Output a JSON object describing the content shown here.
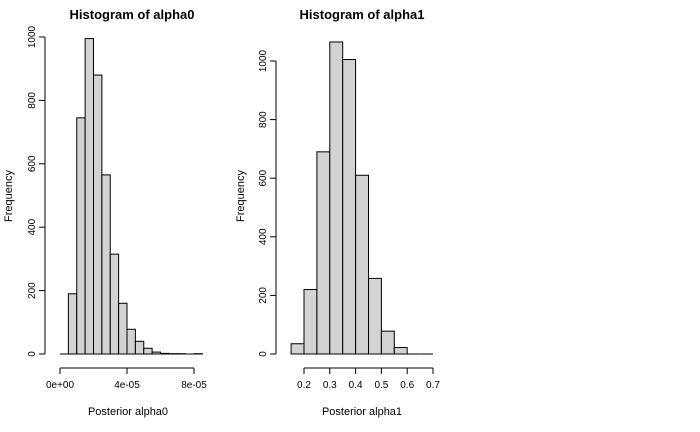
{
  "chart_data": [
    {
      "type": "bar",
      "title": "Histogram of alpha0",
      "xlabel": "Posterior alpha0",
      "ylabel": "Frequency",
      "bin_edges": [
        0.0,
        5e-06,
        1e-05,
        1.5e-05,
        2e-05,
        2.5e-05,
        3e-05,
        3.5e-05,
        4e-05,
        4.5e-05,
        5e-05,
        5.5e-05,
        6e-05,
        6.5e-05,
        7e-05,
        7.5e-05,
        8e-05,
        8.5e-05
      ],
      "values": [
        0,
        190,
        745,
        995,
        880,
        565,
        315,
        160,
        78,
        40,
        18,
        6,
        2,
        1,
        1,
        0,
        1
      ],
      "xlim": [
        0,
        8.5e-05
      ],
      "ylim": [
        0,
        1000
      ],
      "x_ticks": [
        0.0,
        4e-05,
        8e-05
      ],
      "x_tick_labels": [
        "0e+00",
        "4e-05",
        "8e-05"
      ],
      "y_ticks": [
        0,
        200,
        400,
        600,
        800,
        1000
      ],
      "y_tick_labels": [
        "0",
        "200",
        "400",
        "600",
        "800",
        "1000"
      ],
      "grid": false,
      "colors": {
        "fill": "#d3d3d3",
        "stroke": "#000000"
      }
    },
    {
      "type": "bar",
      "title": "Histogram of alpha1",
      "xlabel": "Posterior alpha1",
      "ylabel": "Frequency",
      "bin_edges": [
        0.15,
        0.2,
        0.25,
        0.3,
        0.35,
        0.4,
        0.45,
        0.5,
        0.55,
        0.6,
        0.65,
        0.7
      ],
      "values": [
        35,
        220,
        690,
        1065,
        1005,
        610,
        258,
        78,
        22,
        0,
        0
      ],
      "xlim": [
        0.15,
        0.7
      ],
      "ylim": [
        0,
        1070
      ],
      "x_ticks": [
        0.2,
        0.3,
        0.4,
        0.5,
        0.6,
        0.7
      ],
      "x_tick_labels": [
        "0.2",
        "0.3",
        "0.4",
        "0.5",
        "0.6",
        "0.7"
      ],
      "y_ticks": [
        0,
        200,
        400,
        600,
        800,
        1000
      ],
      "y_tick_labels": [
        "0",
        "200",
        "400",
        "600",
        "800",
        "1000"
      ],
      "grid": false,
      "colors": {
        "fill": "#d3d3d3",
        "stroke": "#000000"
      }
    }
  ]
}
